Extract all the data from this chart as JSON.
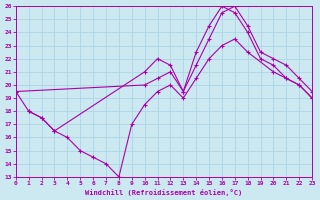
{
  "xlabel": "Windchill (Refroidissement éolien,°C)",
  "bg_color": "#cce8f0",
  "grid_color": "#b0d8e8",
  "line_color": "#aa00aa",
  "xlim": [
    0,
    23
  ],
  "ylim": [
    13,
    26
  ],
  "xticks": [
    0,
    1,
    2,
    3,
    4,
    5,
    6,
    7,
    8,
    9,
    10,
    11,
    12,
    13,
    14,
    15,
    16,
    17,
    18,
    19,
    20,
    21,
    22,
    23
  ],
  "yticks": [
    13,
    14,
    15,
    16,
    17,
    18,
    19,
    20,
    21,
    22,
    23,
    24,
    25,
    26
  ],
  "curve1_x": [
    0,
    1,
    2,
    3,
    10,
    11,
    12,
    13,
    14,
    15,
    16,
    17,
    18,
    19,
    20,
    21,
    22,
    23
  ],
  "curve1_y": [
    19.5,
    18.0,
    17.5,
    16.5,
    21.0,
    22.0,
    21.5,
    19.5,
    22.5,
    24.5,
    26.0,
    25.5,
    24.0,
    22.0,
    21.5,
    20.5,
    20.0,
    19.0
  ],
  "curve2_x": [
    0,
    10,
    11,
    12,
    13,
    14,
    15,
    16,
    17,
    18,
    19,
    20,
    21,
    22,
    23
  ],
  "curve2_y": [
    19.5,
    20.0,
    20.5,
    21.0,
    19.5,
    21.5,
    23.5,
    25.5,
    26.0,
    24.5,
    22.5,
    22.0,
    21.5,
    20.5,
    19.5
  ],
  "curve3_x": [
    1,
    2,
    3,
    4,
    5,
    6,
    7,
    8,
    9,
    10,
    11,
    12,
    13,
    14,
    15,
    16,
    17,
    18,
    20,
    21,
    22,
    23
  ],
  "curve3_y": [
    18.0,
    17.5,
    16.5,
    16.0,
    15.0,
    14.5,
    14.0,
    13.0,
    17.0,
    18.5,
    19.5,
    20.0,
    19.0,
    20.5,
    22.0,
    23.0,
    23.5,
    22.5,
    21.0,
    20.5,
    20.0,
    19.0
  ]
}
